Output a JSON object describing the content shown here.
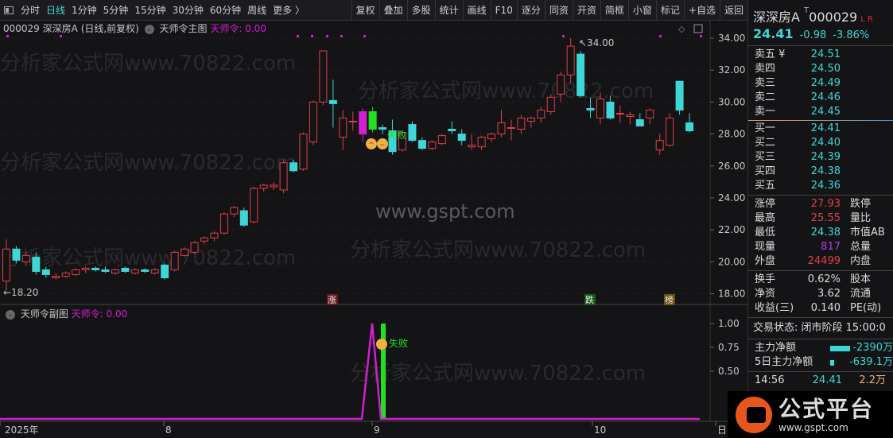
{
  "toolbar": {
    "left": [
      "分时",
      "日线",
      "1分钟",
      "5分钟",
      "15分钟",
      "30分钟",
      "60分钟",
      "周线",
      "更多 〉"
    ],
    "active": "日线",
    "right": [
      "复权",
      "叠加",
      "多股",
      "统计",
      "画线",
      "F10",
      "逐分",
      "同资",
      "开资",
      "简框",
      "小窗",
      "标记",
      "+自选",
      "返回"
    ]
  },
  "main": {
    "code": "000029",
    "name": "深深房A",
    "period": "(日线,前复权)",
    "indicator": "天师令主图",
    "value_label": "天师令: 0.00",
    "high_label": "34.00",
    "low_label": "←18.20",
    "fail_text": "失败",
    "markers": [
      "涨",
      "跌",
      "榜"
    ]
  },
  "sub": {
    "indicator": "天师令副图",
    "value_label": "天师令: 0.00",
    "fail_text": "失败",
    "yticks": [
      "1.00",
      "0.75",
      "0.50"
    ]
  },
  "xaxis": {
    "labels": [
      "2025年",
      "8",
      "9",
      "10",
      "日"
    ]
  },
  "watermark": {
    "text": "分析家公式网www.70822.com",
    "site": "www.gspt.com",
    "logo": "公式平台",
    "logo_url": "www.gspt.com"
  },
  "colors": {
    "up": "#e0404a",
    "down": "#3fd6d6",
    "signal": "#d020d0",
    "fail": "#20e020"
  },
  "chart_data": {
    "type": "candlestick",
    "yticks": [
      34,
      32,
      30,
      28,
      26,
      24,
      22,
      20,
      18
    ],
    "ylim": [
      17.6,
      34.3
    ],
    "candles": [
      [
        18.8,
        21.4,
        18.2,
        20.8
      ],
      [
        20.8,
        21.0,
        19.9,
        20.1
      ],
      [
        20.0,
        20.6,
        19.8,
        20.4
      ],
      [
        20.3,
        20.6,
        19.2,
        19.4
      ],
      [
        19.5,
        19.7,
        19.0,
        19.2
      ],
      [
        19.0,
        19.3,
        18.9,
        19.1
      ],
      [
        19.1,
        19.4,
        19.0,
        19.3
      ],
      [
        19.2,
        19.6,
        19.1,
        19.5
      ],
      [
        19.5,
        19.7,
        19.3,
        19.6
      ],
      [
        19.6,
        19.7,
        19.4,
        19.5
      ],
      [
        19.5,
        19.7,
        19.3,
        19.4
      ],
      [
        19.3,
        19.6,
        19.2,
        19.5
      ],
      [
        19.6,
        19.7,
        19.3,
        19.4
      ],
      [
        19.3,
        19.6,
        19.2,
        19.5
      ],
      [
        19.5,
        19.6,
        19.3,
        19.4
      ],
      [
        19.3,
        19.6,
        19.2,
        19.5
      ],
      [
        19.8,
        19.9,
        18.9,
        19.0
      ],
      [
        19.5,
        20.7,
        19.4,
        20.6
      ],
      [
        20.4,
        20.9,
        20.3,
        20.8
      ],
      [
        20.6,
        21.3,
        20.5,
        21.2
      ],
      [
        21.3,
        21.6,
        21.1,
        21.5
      ],
      [
        21.5,
        21.9,
        21.3,
        21.8
      ],
      [
        21.8,
        23.1,
        21.7,
        23.0
      ],
      [
        23.0,
        23.5,
        22.8,
        23.4
      ],
      [
        23.2,
        23.4,
        22.2,
        22.3
      ],
      [
        22.5,
        24.7,
        22.4,
        24.6
      ],
      [
        24.6,
        24.9,
        24.4,
        24.8
      ],
      [
        24.7,
        25.0,
        24.5,
        24.8
      ],
      [
        24.5,
        26.4,
        24.3,
        26.2
      ],
      [
        26.2,
        26.4,
        25.6,
        25.7
      ],
      [
        25.8,
        28.1,
        25.7,
        28.0
      ],
      [
        27.5,
        30.1,
        27.3,
        30.0
      ],
      [
        30.0,
        33.2,
        29.8,
        33.2
      ],
      [
        30.1,
        31.4,
        28.4,
        29.9
      ],
      [
        27.8,
        29.5,
        27.0,
        29.0
      ],
      [
        28.8,
        29.4,
        28.2,
        28.8
      ],
      [
        28.0,
        29.6,
        27.5,
        29.4
      ],
      [
        29.4,
        29.7,
        28.1,
        28.3
      ],
      [
        28.4,
        28.6,
        28.0,
        28.3
      ],
      [
        28.2,
        28.9,
        26.7,
        26.9
      ],
      [
        27.0,
        28.2,
        26.9,
        28.1
      ],
      [
        28.6,
        28.8,
        27.5,
        27.6
      ],
      [
        27.6,
        27.8,
        27.0,
        27.1
      ],
      [
        27.1,
        27.6,
        27.0,
        27.5
      ],
      [
        27.4,
        28.0,
        27.3,
        27.9
      ],
      [
        28.3,
        28.8,
        28.0,
        28.2
      ],
      [
        28.0,
        28.3,
        27.3,
        27.6
      ],
      [
        27.2,
        28.0,
        27.0,
        27.3
      ],
      [
        27.2,
        27.9,
        27.0,
        27.8
      ],
      [
        27.7,
        28.1,
        27.5,
        28.0
      ],
      [
        28.0,
        29.5,
        27.8,
        28.7
      ],
      [
        28.4,
        28.9,
        27.6,
        28.4
      ],
      [
        28.3,
        29.2,
        28.0,
        29.0
      ],
      [
        28.8,
        29.1,
        28.4,
        29.0
      ],
      [
        29.0,
        29.7,
        28.7,
        29.5
      ],
      [
        29.4,
        30.5,
        29.2,
        30.3
      ],
      [
        30.5,
        31.9,
        30.0,
        31.7
      ],
      [
        31.7,
        34.0,
        31.2,
        33.5
      ],
      [
        33.0,
        33.2,
        30.3,
        30.4
      ],
      [
        29.6,
        30.3,
        29.0,
        29.5
      ],
      [
        29.0,
        30.6,
        28.6,
        30.2
      ],
      [
        30.0,
        30.4,
        28.9,
        29.0
      ],
      [
        29.3,
        29.8,
        28.7,
        29.3
      ],
      [
        29.1,
        29.4,
        28.6,
        29.2
      ],
      [
        28.9,
        29.3,
        28.5,
        28.5
      ],
      [
        29.0,
        29.6,
        28.6,
        29.5
      ],
      [
        27.0,
        28.0,
        26.7,
        27.6
      ],
      [
        27.3,
        29.3,
        27.2,
        29.0
      ],
      [
        31.3,
        31.3,
        29.2,
        29.5
      ],
      [
        28.7,
        29.3,
        28.1,
        28.2
      ]
    ]
  },
  "quote": {
    "name": "深深房A",
    "code": "000029",
    "flags": "L R",
    "price": "24.41",
    "change": "-0.98",
    "pct": "-3.86%"
  },
  "orderbook": {
    "sell": [
      [
        "卖五 ¥",
        "24.51"
      ],
      [
        "卖四",
        "24.50"
      ],
      [
        "卖三",
        "24.49"
      ],
      [
        "卖二",
        "24.46"
      ],
      [
        "卖一",
        "24.45"
      ]
    ],
    "buy": [
      [
        "买一",
        "24.41"
      ],
      [
        "买二",
        "24.40"
      ],
      [
        "买三",
        "24.39"
      ],
      [
        "买四",
        "24.38"
      ],
      [
        "买五",
        "24.36"
      ]
    ]
  },
  "stats": [
    [
      "涨停",
      "27.93",
      "跌停"
    ],
    [
      "最高",
      "25.55",
      "量比"
    ],
    [
      "最低",
      "24.38",
      "市值AB"
    ],
    [
      "现量",
      "817",
      "总量"
    ],
    [
      "外盘",
      "24499",
      "内盘"
    ]
  ],
  "stats2": [
    [
      "换手",
      "0.62%",
      "股本"
    ],
    [
      "净资",
      "3.62",
      "流通"
    ],
    [
      "收益(三)",
      "0.140",
      "PE(动)"
    ]
  ],
  "status": "交易状态: 闭市阶段 15:00:0",
  "flows": [
    [
      "主力净额",
      "-2390万"
    ],
    [
      "5日主力净额",
      "-639.1万"
    ]
  ],
  "ticks": [
    [
      "14:56",
      "24.41",
      "2.2万"
    ]
  ]
}
